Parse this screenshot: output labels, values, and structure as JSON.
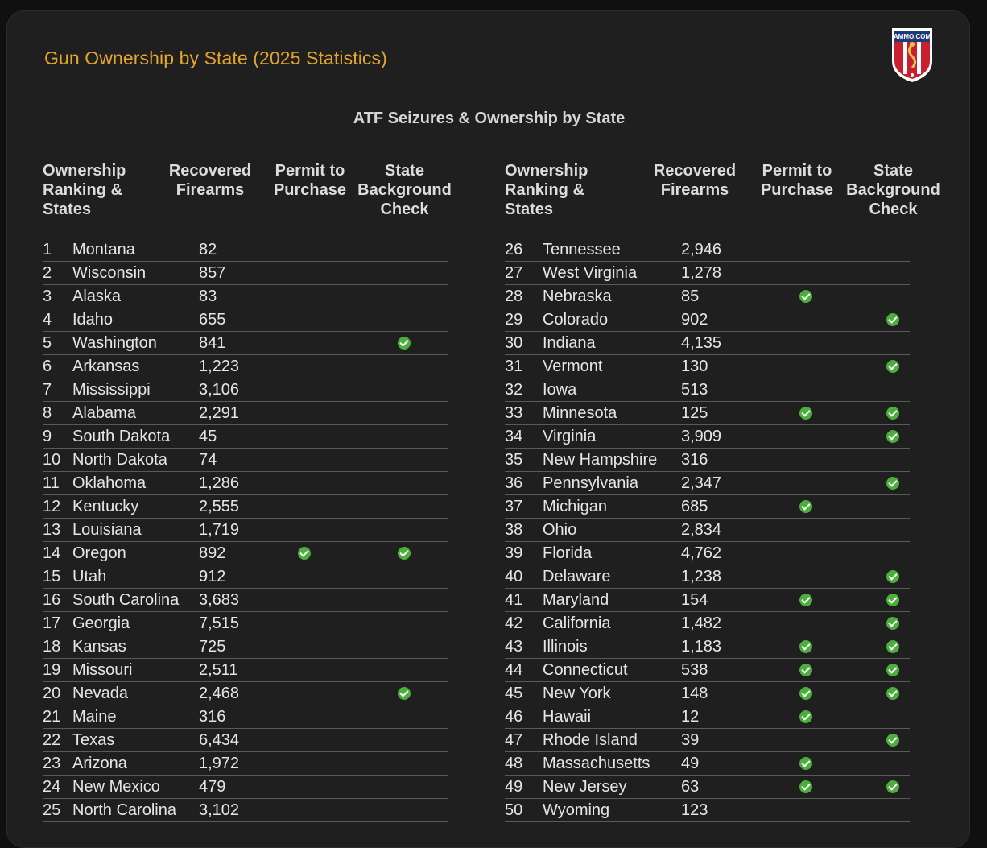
{
  "title": "Gun Ownership by State (2025 Statistics)",
  "subtitle": "ATF Seizures & Ownership by State",
  "logo": {
    "text": "AMMO.COM",
    "icon": "ammo-com-shield-logo"
  },
  "headers": {
    "col1": "Ownership\nRanking &\nStates",
    "col2": "Recovered\nFirearms",
    "col3": "Permit to\nPurchase",
    "col4": "State\nBackground\nCheck"
  },
  "colors": {
    "title": "#e3a52a",
    "check": "#4cae3c",
    "background": "#1f1f1f"
  },
  "left_rows": [
    {
      "rank": "1",
      "state": "Montana",
      "firearms": "82",
      "permit": false,
      "background_check": false
    },
    {
      "rank": "2",
      "state": "Wisconsin",
      "firearms": "857",
      "permit": false,
      "background_check": false
    },
    {
      "rank": "3",
      "state": "Alaska",
      "firearms": "83",
      "permit": false,
      "background_check": false
    },
    {
      "rank": "4",
      "state": "Idaho",
      "firearms": "655",
      "permit": false,
      "background_check": false
    },
    {
      "rank": "5",
      "state": "Washington",
      "firearms": "841",
      "permit": false,
      "background_check": true
    },
    {
      "rank": "6",
      "state": "Arkansas",
      "firearms": "1,223",
      "permit": false,
      "background_check": false
    },
    {
      "rank": "7",
      "state": "Mississippi",
      "firearms": "3,106",
      "permit": false,
      "background_check": false
    },
    {
      "rank": "8",
      "state": "Alabama",
      "firearms": "2,291",
      "permit": false,
      "background_check": false
    },
    {
      "rank": "9",
      "state": "South Dakota",
      "firearms": "45",
      "permit": false,
      "background_check": false
    },
    {
      "rank": "10",
      "state": "North Dakota",
      "firearms": "74",
      "permit": false,
      "background_check": false
    },
    {
      "rank": "11",
      "state": "Oklahoma",
      "firearms": "1,286",
      "permit": false,
      "background_check": false
    },
    {
      "rank": "12",
      "state": "Kentucky",
      "firearms": "2,555",
      "permit": false,
      "background_check": false
    },
    {
      "rank": "13",
      "state": "Louisiana",
      "firearms": "1,719",
      "permit": false,
      "background_check": false
    },
    {
      "rank": "14",
      "state": "Oregon",
      "firearms": "892",
      "permit": true,
      "background_check": true
    },
    {
      "rank": "15",
      "state": "Utah",
      "firearms": "912",
      "permit": false,
      "background_check": false
    },
    {
      "rank": "16",
      "state": "South Carolina",
      "firearms": "3,683",
      "permit": false,
      "background_check": false
    },
    {
      "rank": "17",
      "state": "Georgia",
      "firearms": "7,515",
      "permit": false,
      "background_check": false
    },
    {
      "rank": "18",
      "state": "Kansas",
      "firearms": "725",
      "permit": false,
      "background_check": false
    },
    {
      "rank": "19",
      "state": "Missouri",
      "firearms": "2,511",
      "permit": false,
      "background_check": false
    },
    {
      "rank": "20",
      "state": "Nevada",
      "firearms": "2,468",
      "permit": false,
      "background_check": true
    },
    {
      "rank": "21",
      "state": "Maine",
      "firearms": "316",
      "permit": false,
      "background_check": false
    },
    {
      "rank": "22",
      "state": "Texas",
      "firearms": "6,434",
      "permit": false,
      "background_check": false
    },
    {
      "rank": "23",
      "state": "Arizona",
      "firearms": "1,972",
      "permit": false,
      "background_check": false
    },
    {
      "rank": "24",
      "state": "New Mexico",
      "firearms": "479",
      "permit": false,
      "background_check": false
    },
    {
      "rank": "25",
      "state": "North Carolina",
      "firearms": "3,102",
      "permit": false,
      "background_check": false
    }
  ],
  "right_rows": [
    {
      "rank": "26",
      "state": "Tennessee",
      "firearms": "2,946",
      "permit": false,
      "background_check": false
    },
    {
      "rank": "27",
      "state": "West Virginia",
      "firearms": "1,278",
      "permit": false,
      "background_check": false
    },
    {
      "rank": "28",
      "state": "Nebraska",
      "firearms": "85",
      "permit": true,
      "background_check": false
    },
    {
      "rank": "29",
      "state": "Colorado",
      "firearms": "902",
      "permit": false,
      "background_check": true
    },
    {
      "rank": "30",
      "state": "Indiana",
      "firearms": "4,135",
      "permit": false,
      "background_check": false
    },
    {
      "rank": "31",
      "state": "Vermont",
      "firearms": "130",
      "permit": false,
      "background_check": true
    },
    {
      "rank": "32",
      "state": "Iowa",
      "firearms": "513",
      "permit": false,
      "background_check": false
    },
    {
      "rank": "33",
      "state": "Minnesota",
      "firearms": "125",
      "permit": true,
      "background_check": true
    },
    {
      "rank": "34",
      "state": "Virginia",
      "firearms": "3,909",
      "permit": false,
      "background_check": true
    },
    {
      "rank": "35",
      "state": "New Hampshire",
      "firearms": "316",
      "permit": false,
      "background_check": false
    },
    {
      "rank": "36",
      "state": "Pennsylvania",
      "firearms": "2,347",
      "permit": false,
      "background_check": true
    },
    {
      "rank": "37",
      "state": "Michigan",
      "firearms": "685",
      "permit": true,
      "background_check": false
    },
    {
      "rank": "38",
      "state": "Ohio",
      "firearms": "2,834",
      "permit": false,
      "background_check": false
    },
    {
      "rank": "39",
      "state": "Florida",
      "firearms": "4,762",
      "permit": false,
      "background_check": false
    },
    {
      "rank": "40",
      "state": "Delaware",
      "firearms": "1,238",
      "permit": false,
      "background_check": true
    },
    {
      "rank": "41",
      "state": "Maryland",
      "firearms": "154",
      "permit": true,
      "background_check": true
    },
    {
      "rank": "42",
      "state": "California",
      "firearms": "1,482",
      "permit": false,
      "background_check": true
    },
    {
      "rank": "43",
      "state": "Illinois",
      "firearms": "1,183",
      "permit": true,
      "background_check": true
    },
    {
      "rank": "44",
      "state": "Connecticut",
      "firearms": "538",
      "permit": true,
      "background_check": true
    },
    {
      "rank": "45",
      "state": "New York",
      "firearms": "148",
      "permit": true,
      "background_check": true
    },
    {
      "rank": "46",
      "state": "Hawaii",
      "firearms": "12",
      "permit": true,
      "background_check": false
    },
    {
      "rank": "47",
      "state": "Rhode Island",
      "firearms": "39",
      "permit": false,
      "background_check": true
    },
    {
      "rank": "48",
      "state": "Massachusetts",
      "firearms": "49",
      "permit": true,
      "background_check": false
    },
    {
      "rank": "49",
      "state": "New Jersey",
      "firearms": "63",
      "permit": true,
      "background_check": true
    },
    {
      "rank": "50",
      "state": "Wyoming",
      "firearms": "123",
      "permit": false,
      "background_check": false
    }
  ]
}
